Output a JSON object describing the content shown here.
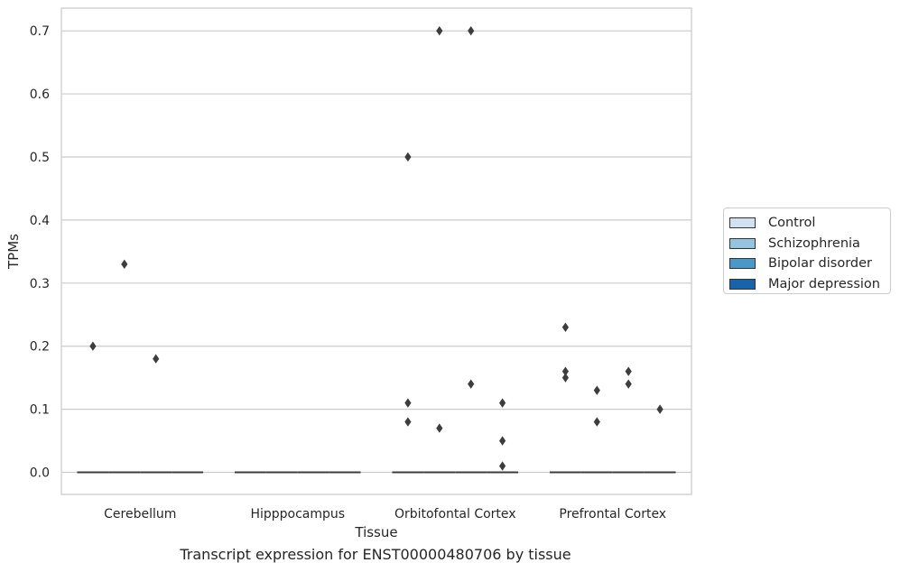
{
  "chart_data": {
    "type": "boxplot",
    "caption": "Transcript expression for ENST00000480706 by tissue",
    "xlabel": "Tissue",
    "ylabel": "TPMs",
    "ylim": [
      -0.035,
      0.736
    ],
    "yticks": [
      "0.0",
      "0.1",
      "0.2",
      "0.3",
      "0.4",
      "0.5",
      "0.6",
      "0.7"
    ],
    "ytick_values": [
      0,
      0.1,
      0.2,
      0.3,
      0.4,
      0.5,
      0.6,
      0.7
    ],
    "grid": "horizontal",
    "legend_position": "right",
    "categories": [
      "Cerebellum",
      "Hipppocampus",
      "Orbitofontal Cortex",
      "Prefrontal Cortex"
    ],
    "series": [
      {
        "name": "Control",
        "color": "#d0e1f2",
        "median": [
          0,
          0,
          0,
          0
        ],
        "outliers": [
          [
            0.2
          ],
          [],
          [
            0.5,
            0.11,
            0.08
          ],
          [
            0.23,
            0.16,
            0.15
          ]
        ]
      },
      {
        "name": "Schizophrenia",
        "color": "#94c4df",
        "median": [
          0,
          0,
          0,
          0
        ],
        "outliers": [
          [
            0.33
          ],
          [],
          [
            0.7,
            0.07
          ],
          [
            0.13,
            0.08
          ]
        ]
      },
      {
        "name": "Bipolar disorder",
        "color": "#4a98c9",
        "median": [
          0,
          0,
          0,
          0
        ],
        "outliers": [
          [
            0.18
          ],
          [],
          [
            0.7,
            0.14
          ],
          [
            0.16,
            0.14
          ]
        ]
      },
      {
        "name": "Major depression",
        "color": "#1764ab",
        "median": [
          0,
          0,
          0,
          0
        ],
        "outliers": [
          [],
          [],
          [
            0.11,
            0.05,
            0.01
          ],
          [
            0.1
          ]
        ]
      }
    ]
  }
}
